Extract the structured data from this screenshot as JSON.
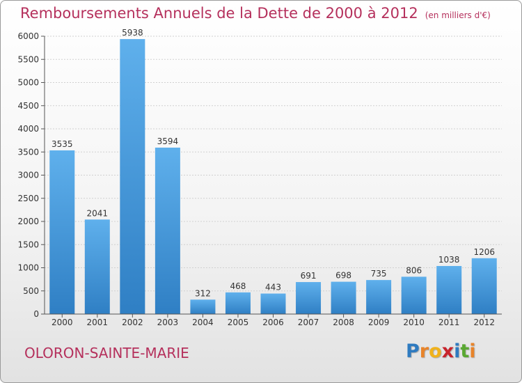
{
  "title": "Remboursements Annuels de la Dette de 2000 à 2012",
  "unit": "(en milliers d'€)",
  "city": "OLORON-SAINTE-MARIE",
  "logo": {
    "letters": [
      "P",
      "r",
      "o",
      "x",
      "i",
      "t",
      "i"
    ],
    "colors": [
      "#2f7bc0",
      "#e8842a",
      "#f0b21c",
      "#c8242c",
      "#2f7bc0",
      "#5aa832",
      "#e8842a"
    ]
  },
  "colors": {
    "bar_top": "#5fb0ec",
    "bar_bottom": "#2f7fc4",
    "text_accent": "#b5305c"
  },
  "chart_data": {
    "type": "bar",
    "categories": [
      "2000",
      "2001",
      "2002",
      "2003",
      "2004",
      "2005",
      "2006",
      "2007",
      "2008",
      "2009",
      "2010",
      "2011",
      "2012"
    ],
    "values": [
      3535,
      2041,
      5938,
      3594,
      312,
      468,
      443,
      691,
      698,
      735,
      806,
      1038,
      1206
    ],
    "yticks": [
      0,
      500,
      1000,
      1500,
      2000,
      2500,
      3000,
      3500,
      4000,
      4500,
      5000,
      5500,
      6000
    ],
    "ylim": [
      0,
      6000
    ],
    "grid": true
  }
}
